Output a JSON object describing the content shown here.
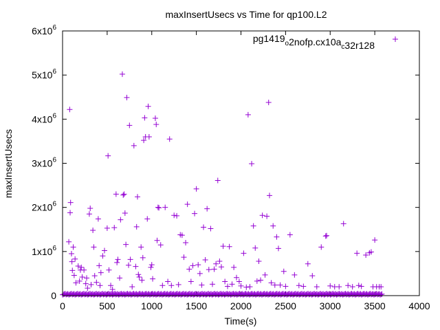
{
  "chart_data": {
    "type": "scatter",
    "title": "maxInsertUsecs vs Time for qp100.L2",
    "xlabel": "Time(s)",
    "ylabel": "maxInsertUsecs",
    "xlim": [
      0,
      4000
    ],
    "ylim": [
      0,
      6000000
    ],
    "xticks": [
      0,
      500,
      1000,
      1500,
      2000,
      2500,
      3000,
      3500,
      4000
    ],
    "xtick_labels": [
      "0",
      "500",
      "1000",
      "1500",
      "2000",
      "2500",
      "3000",
      "3500",
      "4000"
    ],
    "yticks": [
      0,
      1000000,
      2000000,
      3000000,
      4000000,
      5000000,
      6000000
    ],
    "ytick_labels": [
      {
        "base": "0",
        "exp": ""
      },
      {
        "base": "1x10",
        "exp": "6"
      },
      {
        "base": "2x10",
        "exp": "6"
      },
      {
        "base": "3x10",
        "exp": "6"
      },
      {
        "base": "4x10",
        "exp": "6"
      },
      {
        "base": "5x10",
        "exp": "6"
      },
      {
        "base": "6x10",
        "exp": "6"
      }
    ],
    "legend": {
      "position": "top-right",
      "label_parts": [
        {
          "text": "pg1419",
          "sub": false
        },
        {
          "text": "o",
          "sub": true
        },
        {
          "text": "2nofp.cx10a",
          "sub": false
        },
        {
          "text": "c",
          "sub": true
        },
        {
          "text": "32r128",
          "sub": false
        }
      ]
    },
    "series": [
      {
        "name": "pg1419_o2nofp.cx10a_c32r128",
        "color": "#9400d3",
        "marker": "plus",
        "baseline_band": {
          "x_range": [
            0,
            3580
          ],
          "y": 20000,
          "count": 360
        },
        "points": [
          [
            70,
            1220000
          ],
          [
            80,
            4220000
          ],
          [
            85,
            1880000
          ],
          [
            90,
            2110000
          ],
          [
            100,
            950000
          ],
          [
            105,
            770000
          ],
          [
            110,
            570000
          ],
          [
            120,
            1100000
          ],
          [
            130,
            460000
          ],
          [
            140,
            830000
          ],
          [
            150,
            290000
          ],
          [
            175,
            670000
          ],
          [
            190,
            330000
          ],
          [
            200,
            580000
          ],
          [
            210,
            640000
          ],
          [
            220,
            420000
          ],
          [
            240,
            580000
          ],
          [
            260,
            270000
          ],
          [
            270,
            400000
          ],
          [
            280,
            170000
          ],
          [
            300,
            1850000
          ],
          [
            310,
            1980000
          ],
          [
            320,
            250000
          ],
          [
            340,
            1480000
          ],
          [
            350,
            1100000
          ],
          [
            360,
            450000
          ],
          [
            380,
            300000
          ],
          [
            400,
            1740000
          ],
          [
            410,
            680000
          ],
          [
            420,
            230000
          ],
          [
            430,
            520000
          ],
          [
            450,
            900000
          ],
          [
            470,
            1020000
          ],
          [
            500,
            1530000
          ],
          [
            510,
            3170000
          ],
          [
            520,
            580000
          ],
          [
            540,
            230000
          ],
          [
            560,
            140000
          ],
          [
            580,
            1540000
          ],
          [
            600,
            2300000
          ],
          [
            610,
            750000
          ],
          [
            620,
            820000
          ],
          [
            640,
            400000
          ],
          [
            650,
            1720000
          ],
          [
            670,
            5020000
          ],
          [
            680,
            2280000
          ],
          [
            690,
            2300000
          ],
          [
            700,
            1870000
          ],
          [
            710,
            1160000
          ],
          [
            720,
            4490000
          ],
          [
            740,
            690000
          ],
          [
            750,
            3860000
          ],
          [
            760,
            820000
          ],
          [
            780,
            200000
          ],
          [
            800,
            3400000
          ],
          [
            820,
            660000
          ],
          [
            830,
            1560000
          ],
          [
            840,
            2240000
          ],
          [
            850,
            480000
          ],
          [
            860,
            420000
          ],
          [
            880,
            1100000
          ],
          [
            890,
            350000
          ],
          [
            900,
            860000
          ],
          [
            910,
            3520000
          ],
          [
            920,
            4030000
          ],
          [
            930,
            3600000
          ],
          [
            950,
            1740000
          ],
          [
            960,
            4290000
          ],
          [
            970,
            3600000
          ],
          [
            990,
            640000
          ],
          [
            1000,
            700000
          ],
          [
            1010,
            380000
          ],
          [
            1040,
            4020000
          ],
          [
            1050,
            3880000
          ],
          [
            1060,
            1250000
          ],
          [
            1070,
            2000000
          ],
          [
            1080,
            1990000
          ],
          [
            1100,
            1150000
          ],
          [
            1120,
            230000
          ],
          [
            1150,
            2000000
          ],
          [
            1180,
            320000
          ],
          [
            1200,
            3550000
          ],
          [
            1220,
            230000
          ],
          [
            1250,
            1820000
          ],
          [
            1280,
            1810000
          ],
          [
            1300,
            250000
          ],
          [
            1320,
            1380000
          ],
          [
            1340,
            1370000
          ],
          [
            1360,
            870000
          ],
          [
            1380,
            1200000
          ],
          [
            1400,
            2070000
          ],
          [
            1420,
            600000
          ],
          [
            1440,
            320000
          ],
          [
            1460,
            680000
          ],
          [
            1480,
            1860000
          ],
          [
            1500,
            2420000
          ],
          [
            1520,
            700000
          ],
          [
            1540,
            500000
          ],
          [
            1560,
            240000
          ],
          [
            1580,
            1550000
          ],
          [
            1600,
            810000
          ],
          [
            1620,
            1970000
          ],
          [
            1640,
            590000
          ],
          [
            1660,
            1520000
          ],
          [
            1680,
            260000
          ],
          [
            1700,
            600000
          ],
          [
            1720,
            720000
          ],
          [
            1740,
            2610000
          ],
          [
            1760,
            780000
          ],
          [
            1780,
            650000
          ],
          [
            1800,
            1120000
          ],
          [
            1820,
            320000
          ],
          [
            1850,
            210000
          ],
          [
            1870,
            1110000
          ],
          [
            1900,
            260000
          ],
          [
            1920,
            640000
          ],
          [
            1950,
            410000
          ],
          [
            1980,
            320000
          ],
          [
            2000,
            220000
          ],
          [
            2030,
            960000
          ],
          [
            2060,
            190000
          ],
          [
            2080,
            4100000
          ],
          [
            2100,
            200000
          ],
          [
            2120,
            2990000
          ],
          [
            2140,
            1580000
          ],
          [
            2160,
            1080000
          ],
          [
            2180,
            330000
          ],
          [
            2200,
            780000
          ],
          [
            2220,
            350000
          ],
          [
            2240,
            1820000
          ],
          [
            2270,
            470000
          ],
          [
            2290,
            1800000
          ],
          [
            2310,
            4380000
          ],
          [
            2320,
            2270000
          ],
          [
            2340,
            290000
          ],
          [
            2360,
            1580000
          ],
          [
            2380,
            240000
          ],
          [
            2400,
            1330000
          ],
          [
            2420,
            1070000
          ],
          [
            2440,
            240000
          ],
          [
            2480,
            550000
          ],
          [
            2500,
            210000
          ],
          [
            2550,
            1380000
          ],
          [
            2600,
            470000
          ],
          [
            2650,
            230000
          ],
          [
            2700,
            210000
          ],
          [
            2750,
            720000
          ],
          [
            2800,
            450000
          ],
          [
            2850,
            200000
          ],
          [
            2900,
            1100000
          ],
          [
            2950,
            1350000
          ],
          [
            2960,
            1360000
          ],
          [
            3000,
            220000
          ],
          [
            3050,
            200000
          ],
          [
            3100,
            200000
          ],
          [
            3150,
            1630000
          ],
          [
            3200,
            230000
          ],
          [
            3250,
            200000
          ],
          [
            3300,
            960000
          ],
          [
            3320,
            230000
          ],
          [
            3350,
            210000
          ],
          [
            3400,
            920000
          ],
          [
            3440,
            970000
          ],
          [
            3460,
            990000
          ],
          [
            3480,
            200000
          ],
          [
            3500,
            1260000
          ],
          [
            3520,
            200000
          ],
          [
            3550,
            200000
          ],
          [
            3570,
            200000
          ]
        ]
      }
    ]
  }
}
